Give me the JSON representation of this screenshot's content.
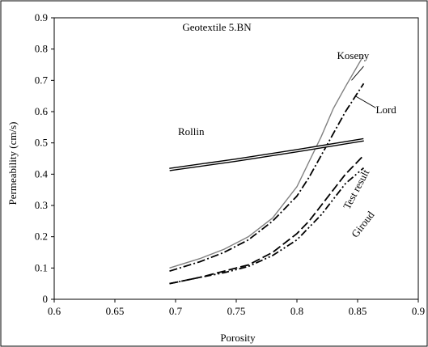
{
  "chart_data": {
    "type": "line",
    "title": "Geotextile 5.BN",
    "xlabel": "Porosity",
    "ylabel": "Permeability (cm/s)",
    "xlim": [
      0.6,
      0.9
    ],
    "ylim": [
      0,
      0.9
    ],
    "xticks": [
      0.6,
      0.65,
      0.7,
      0.75,
      0.8,
      0.85,
      0.9
    ],
    "yticks": [
      0,
      0.1,
      0.2,
      0.3,
      0.4,
      0.5,
      0.6,
      0.7,
      0.8,
      0.9
    ],
    "xtick_labels": [
      "0.6",
      "0.65",
      "0.7",
      "0.75",
      "0.8",
      "0.85",
      "0.9"
    ],
    "ytick_labels": [
      "0",
      "0.1",
      "0.2",
      "0.3",
      "0.4",
      "0.5",
      "0.6",
      "0.7",
      "0.8",
      "0.9"
    ],
    "grid": false,
    "legend": "none",
    "series": [
      {
        "name": "Koseny",
        "color": "#808080",
        "dash": "solid",
        "x": [
          0.695,
          0.72,
          0.74,
          0.76,
          0.78,
          0.8,
          0.81,
          0.82,
          0.83,
          0.84,
          0.855
        ],
        "y": [
          0.1,
          0.13,
          0.16,
          0.2,
          0.26,
          0.36,
          0.44,
          0.52,
          0.61,
          0.68,
          0.78
        ]
      },
      {
        "name": "Lord",
        "color": "#000000",
        "dash": "dashdot",
        "x": [
          0.695,
          0.72,
          0.74,
          0.76,
          0.78,
          0.8,
          0.81,
          0.82,
          0.83,
          0.84,
          0.855
        ],
        "y": [
          0.09,
          0.12,
          0.15,
          0.19,
          0.25,
          0.33,
          0.39,
          0.46,
          0.53,
          0.6,
          0.69
        ]
      },
      {
        "name": "Rollin",
        "color": "#000000",
        "dash": "double",
        "x": [
          0.695,
          0.75,
          0.8,
          0.855
        ],
        "y": [
          0.415,
          0.445,
          0.475,
          0.51
        ]
      },
      {
        "name": "Test result",
        "color": "#000000",
        "dash": "longdash",
        "x": [
          0.695,
          0.72,
          0.74,
          0.76,
          0.78,
          0.8,
          0.81,
          0.82,
          0.83,
          0.84,
          0.855
        ],
        "y": [
          0.05,
          0.07,
          0.09,
          0.11,
          0.15,
          0.21,
          0.25,
          0.3,
          0.35,
          0.4,
          0.46
        ]
      },
      {
        "name": "Giroud",
        "color": "#000000",
        "dash": "dashdotdot",
        "x": [
          0.695,
          0.72,
          0.74,
          0.76,
          0.78,
          0.8,
          0.81,
          0.82,
          0.83,
          0.84,
          0.855
        ],
        "y": [
          0.05,
          0.07,
          0.085,
          0.105,
          0.14,
          0.19,
          0.23,
          0.27,
          0.32,
          0.37,
          0.42
        ]
      }
    ],
    "annotations": [
      {
        "text": "Koseny",
        "x": 0.833,
        "y": 0.768
      },
      {
        "text": "Lord",
        "x": 0.865,
        "y": 0.595
      },
      {
        "text": "Rollin",
        "x": 0.702,
        "y": 0.525
      },
      {
        "text": "Test result",
        "x": 0.843,
        "y": 0.285,
        "rotate": -62
      },
      {
        "text": "Giroud",
        "x": 0.849,
        "y": 0.195,
        "rotate": -52
      }
    ]
  }
}
